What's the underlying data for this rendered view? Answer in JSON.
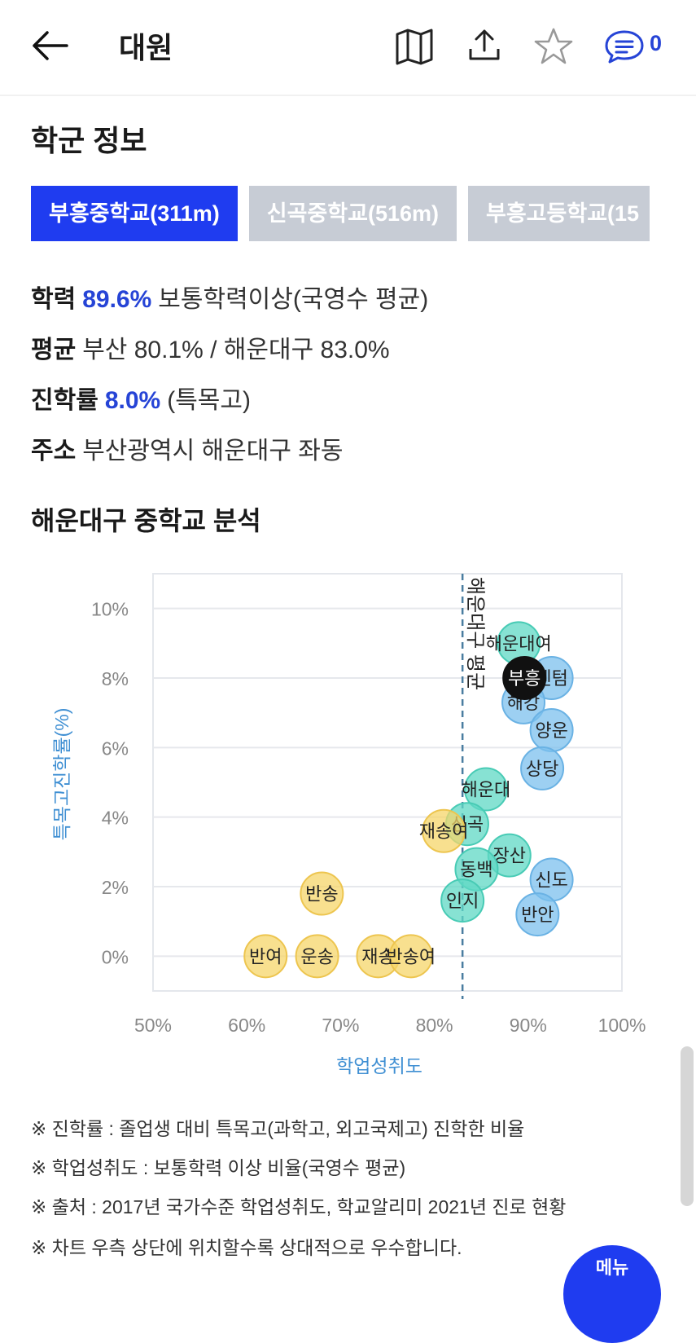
{
  "header": {
    "title": "대원",
    "comment_count": "0",
    "icons": [
      "back-arrow-icon",
      "map-book-icon",
      "share-upload-icon",
      "star-icon",
      "chat-bubble-icon"
    ]
  },
  "section": {
    "title": "학군 정보"
  },
  "tabs": [
    {
      "label": "부흥중학교(311m)",
      "active": true
    },
    {
      "label": "신곡중학교(516m)",
      "active": false
    },
    {
      "label": "부흥고등학교(15",
      "active": false
    }
  ],
  "info": {
    "achievement": {
      "label": "학력",
      "value": "89.6%",
      "text": "보통학력이상(국영수 평균)"
    },
    "average": {
      "label": "평균",
      "text": "부산 80.1% / 해운대구 83.0%"
    },
    "advancement": {
      "label": "진학률",
      "value": "8.0%",
      "text": "(특목고)"
    },
    "address": {
      "label": "주소",
      "text": "부산광역시 해운대구 좌동"
    }
  },
  "chart_title": "해운대구 중학교 분석",
  "chart_data": {
    "type": "scatter",
    "xlabel": "학업성취도",
    "ylabel": "특목고진학률(%)",
    "xlim": [
      50,
      100
    ],
    "ylim": [
      -1,
      11
    ],
    "x_ticks": [
      "50%",
      "60%",
      "70%",
      "80%",
      "90%",
      "100%"
    ],
    "y_ticks": [
      "0%",
      "2%",
      "4%",
      "6%",
      "8%",
      "10%"
    ],
    "reference_line": {
      "x": 83.0,
      "label": "해운대구 평균"
    },
    "grid": true,
    "colors": {
      "high": "#7cc0ee",
      "mid": "#5fd8c4",
      "low": "#f6d56a",
      "selected": "#111111"
    },
    "points": [
      {
        "name": "해운대여",
        "x": 89.0,
        "y": 9.0,
        "group": "mid"
      },
      {
        "name": "센텀",
        "x": 92.5,
        "y": 8.0,
        "group": "high"
      },
      {
        "name": "해강",
        "x": 89.5,
        "y": 7.3,
        "group": "high"
      },
      {
        "name": "양운",
        "x": 92.5,
        "y": 6.5,
        "group": "high"
      },
      {
        "name": "상당",
        "x": 91.5,
        "y": 5.4,
        "group": "high"
      },
      {
        "name": "해운대",
        "x": 85.5,
        "y": 4.8,
        "group": "mid"
      },
      {
        "name": "신곡",
        "x": 83.5,
        "y": 3.8,
        "group": "mid"
      },
      {
        "name": "재송여",
        "x": 81.0,
        "y": 3.6,
        "group": "low"
      },
      {
        "name": "장산",
        "x": 88.0,
        "y": 2.9,
        "group": "mid"
      },
      {
        "name": "동백",
        "x": 84.5,
        "y": 2.5,
        "group": "mid"
      },
      {
        "name": "신도",
        "x": 92.5,
        "y": 2.2,
        "group": "high"
      },
      {
        "name": "인지",
        "x": 83.0,
        "y": 1.6,
        "group": "mid"
      },
      {
        "name": "반안",
        "x": 91.0,
        "y": 1.2,
        "group": "high"
      },
      {
        "name": "반송",
        "x": 68.0,
        "y": 1.8,
        "group": "low"
      },
      {
        "name": "반여",
        "x": 62.0,
        "y": 0.0,
        "group": "low"
      },
      {
        "name": "운송",
        "x": 67.5,
        "y": 0.0,
        "group": "low"
      },
      {
        "name": "재송",
        "x": 74.0,
        "y": 0.0,
        "group": "low"
      },
      {
        "name": "반송여",
        "x": 77.5,
        "y": 0.0,
        "group": "low"
      },
      {
        "name": "부흥",
        "x": 89.6,
        "y": 8.0,
        "group": "selected"
      }
    ]
  },
  "notes": [
    "※ 진학률 : 졸업생 대비 특목고(과학고, 외고국제고) 진학한 비율",
    "※ 학업성취도 : 보통학력 이상 비율(국영수 평균)",
    "※ 출처 : 2017년 국가수준 학업성취도, 학교알리미 2021년 진로 현황",
    "※ 차트 우측 상단에 위치할수록 상대적으로 우수합니다."
  ],
  "fab_label": "메뉴"
}
